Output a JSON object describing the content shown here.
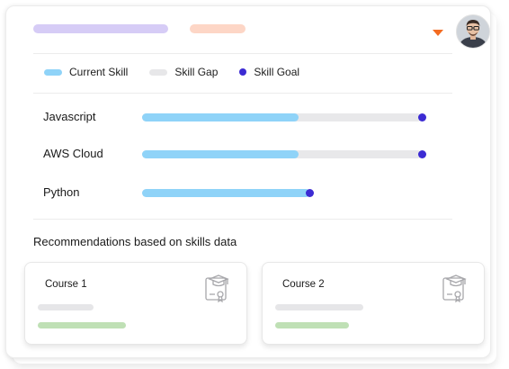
{
  "header": {
    "accent_purple": "#d6ccf6",
    "accent_peach": "#fdd6c6",
    "dropdown_icon": "chevron-down-icon",
    "dropdown_color": "#f36b21",
    "avatar_icon": "user-avatar"
  },
  "legend": {
    "current": "Current Skill",
    "gap": "Skill Gap",
    "goal": "Skill Goal",
    "current_color": "#8fd3f8",
    "gap_color": "#e7e7e9",
    "goal_color": "#3c2bd3"
  },
  "skills": [
    {
      "name": "Javascript",
      "current": 0.56,
      "goal": 1.0
    },
    {
      "name": "AWS Cloud",
      "current": 0.56,
      "goal": 1.0
    },
    {
      "name": "Python",
      "current": 0.6,
      "goal": 0.6
    }
  ],
  "recommendations": {
    "title": "Recommendations based on skills data",
    "courses": [
      {
        "title": "Course 1",
        "icon": "certificate-icon"
      },
      {
        "title": "Course 2",
        "icon": "certificate-icon"
      }
    ]
  }
}
